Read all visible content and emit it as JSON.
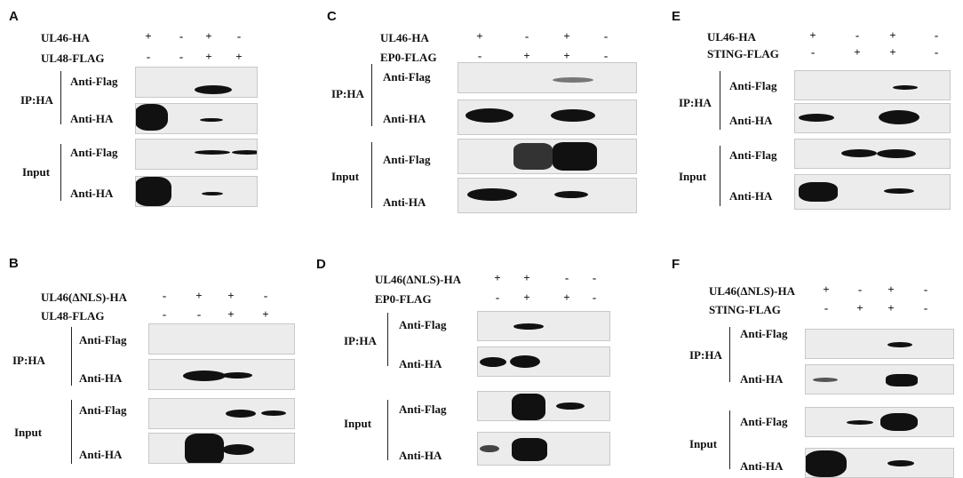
{
  "figure": {
    "panels": [
      {
        "label": "A",
        "headers": [
          {
            "name": "UL46-HA",
            "signs": [
              "+",
              "-",
              "+",
              "-"
            ]
          },
          {
            "name": "UL48-FLAG",
            "signs": [
              "-",
              "-",
              "+",
              "+"
            ]
          }
        ],
        "groups": [
          {
            "name": "IP:HA",
            "rows": [
              "Anti-Flag",
              "Anti-HA"
            ]
          },
          {
            "name": "Input",
            "rows": [
              "Anti-Flag",
              "Anti-HA"
            ]
          }
        ]
      },
      {
        "label": "B",
        "headers": [
          {
            "name": "UL46(ΔNLS)-HA",
            "signs": [
              "-",
              "+",
              "+",
              "-"
            ]
          },
          {
            "name": "UL48-FLAG",
            "signs": [
              "-",
              "-",
              "+",
              "+"
            ]
          }
        ],
        "groups": [
          {
            "name": "IP:HA",
            "rows": [
              "Anti-Flag",
              "Anti-HA"
            ]
          },
          {
            "name": "Input",
            "rows": [
              "Anti-Flag",
              "Anti-HA"
            ]
          }
        ]
      },
      {
        "label": "C",
        "headers": [
          {
            "name": "UL46-HA",
            "signs": [
              "+",
              "-",
              "+",
              "-"
            ]
          },
          {
            "name": "EP0-FLAG",
            "signs": [
              "-",
              "+",
              "+",
              "-"
            ]
          }
        ],
        "groups": [
          {
            "name": "IP:HA",
            "rows": [
              "Anti-Flag",
              "Anti-HA"
            ]
          },
          {
            "name": "Input",
            "rows": [
              "Anti-Flag",
              "Anti-HA"
            ]
          }
        ]
      },
      {
        "label": "D",
        "headers": [
          {
            "name": "UL46(ΔNLS)-HA",
            "signs": [
              "+",
              "+",
              "-",
              "-"
            ]
          },
          {
            "name": "EP0-FLAG",
            "signs": [
              "-",
              "+",
              "+",
              "-"
            ]
          }
        ],
        "groups": [
          {
            "name": "IP:HA",
            "rows": [
              "Anti-Flag",
              "Anti-HA"
            ]
          },
          {
            "name": "Input",
            "rows": [
              "Anti-Flag",
              "Anti-HA"
            ]
          }
        ]
      },
      {
        "label": "E",
        "headers": [
          {
            "name": "UL46-HA",
            "signs": [
              "+",
              "-",
              "+",
              "-"
            ]
          },
          {
            "name": "STING-FLAG",
            "signs": [
              "-",
              "+",
              "+",
              "-"
            ]
          }
        ],
        "groups": [
          {
            "name": "IP:HA",
            "rows": [
              "Anti-Flag",
              "Anti-HA"
            ]
          },
          {
            "name": "Input",
            "rows": [
              "Anti-Flag",
              "Anti-HA"
            ]
          }
        ]
      },
      {
        "label": "F",
        "headers": [
          {
            "name": "UL46(ΔNLS)-HA",
            "signs": [
              "+",
              "-",
              "+",
              "-"
            ]
          },
          {
            "name": "STING-FLAG",
            "signs": [
              "-",
              "+",
              "+",
              "-"
            ]
          }
        ],
        "groups": [
          {
            "name": "IP:HA",
            "rows": [
              "Anti-Flag",
              "Anti-HA"
            ]
          },
          {
            "name": "Input",
            "rows": [
              "Anti-Flag",
              "Anti-HA"
            ]
          }
        ]
      }
    ]
  }
}
